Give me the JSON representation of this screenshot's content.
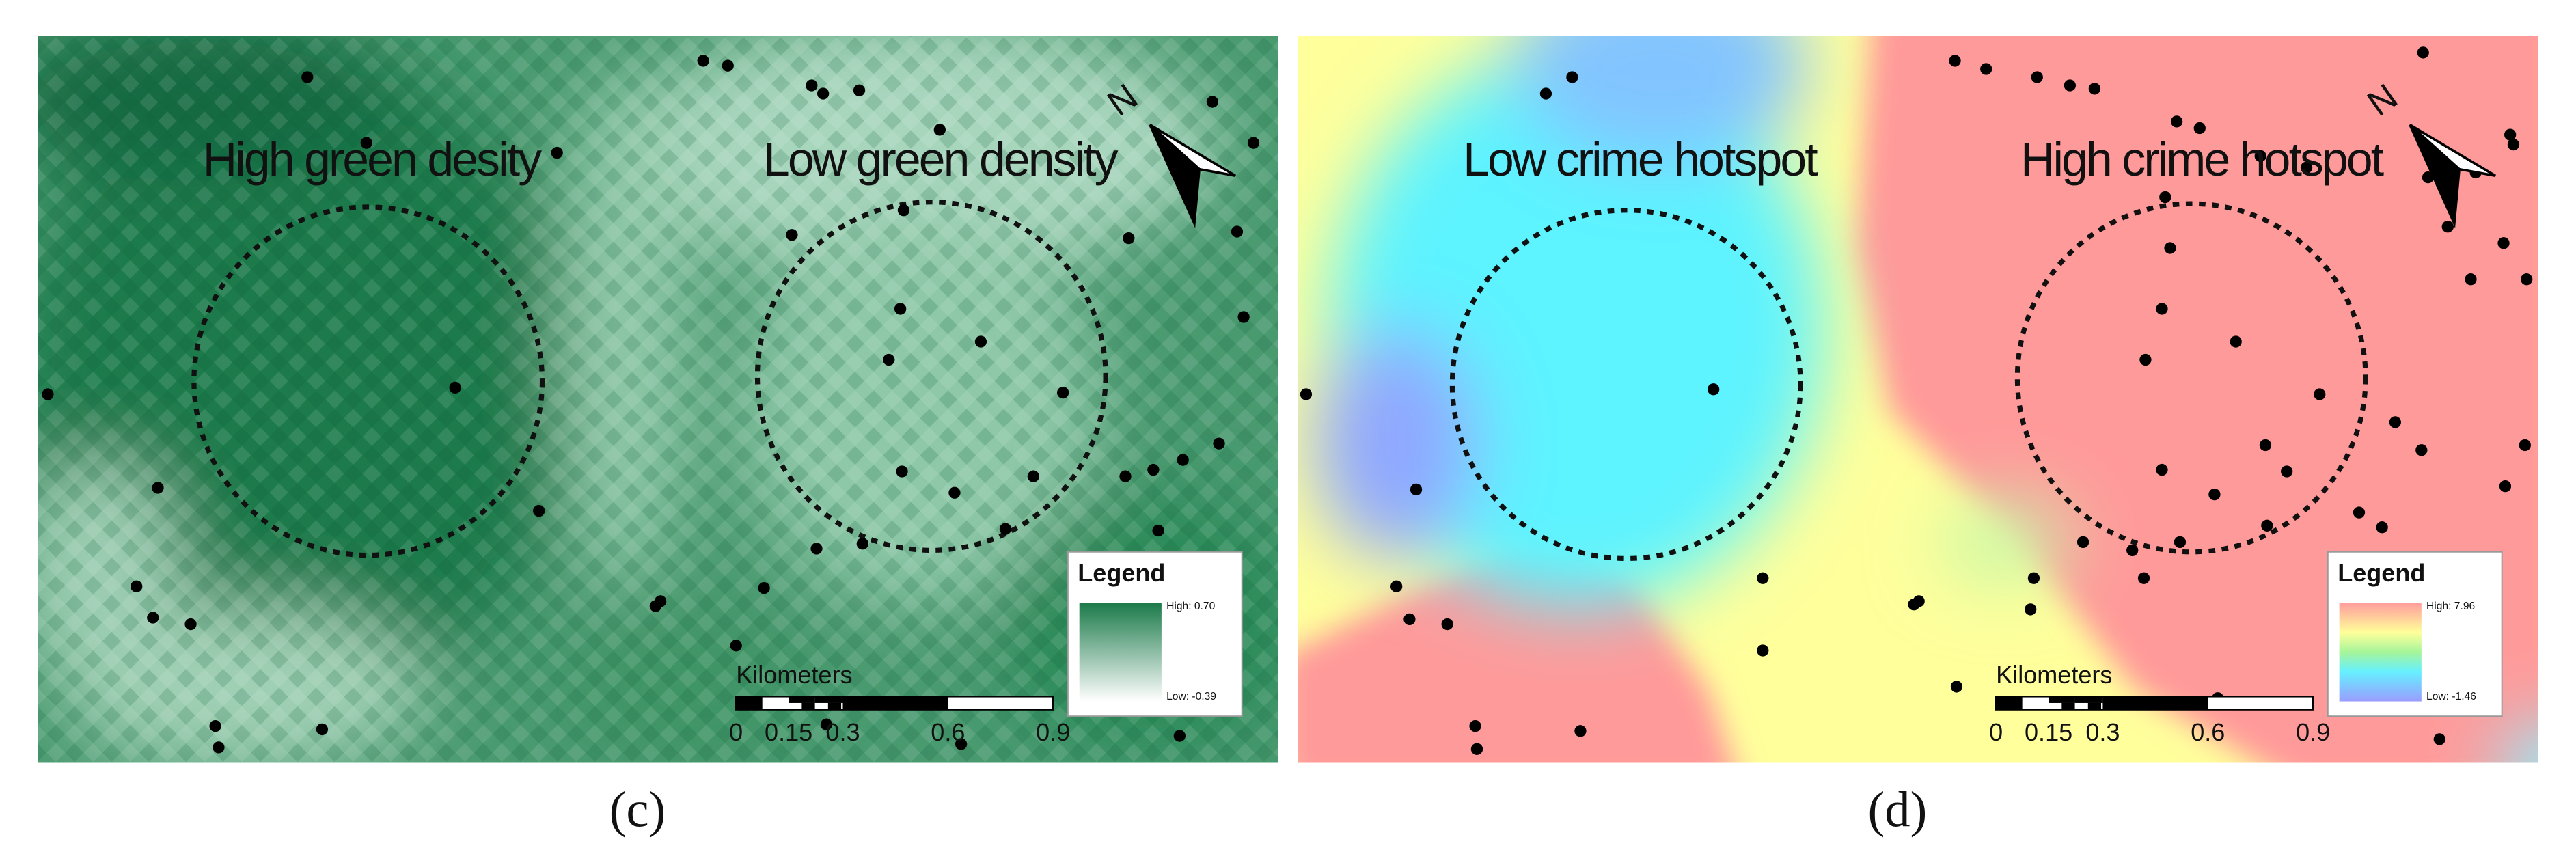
{
  "panels": [
    {
      "caption": "(c)",
      "annotations": [
        "High green desity",
        "Low green density"
      ],
      "north": "N",
      "legend": {
        "title": "Legend",
        "high": "High: 0.70",
        "low": "Low: -0.39"
      },
      "scale": {
        "unit": "Kilometers",
        "ticks": [
          "0",
          "0.15",
          "0.3",
          "0.6",
          "0.9"
        ]
      }
    },
    {
      "caption": "(d)",
      "annotations": [
        "Low crime hotspot",
        "High crime hotspot"
      ],
      "north": "N",
      "legend": {
        "title": "Legend",
        "high": "High: 7.96",
        "low": "Low: -1.46"
      },
      "scale": {
        "unit": "Kilometers",
        "ticks": [
          "0",
          "0.15",
          "0.3",
          "0.6",
          "0.9"
        ]
      }
    }
  ]
}
